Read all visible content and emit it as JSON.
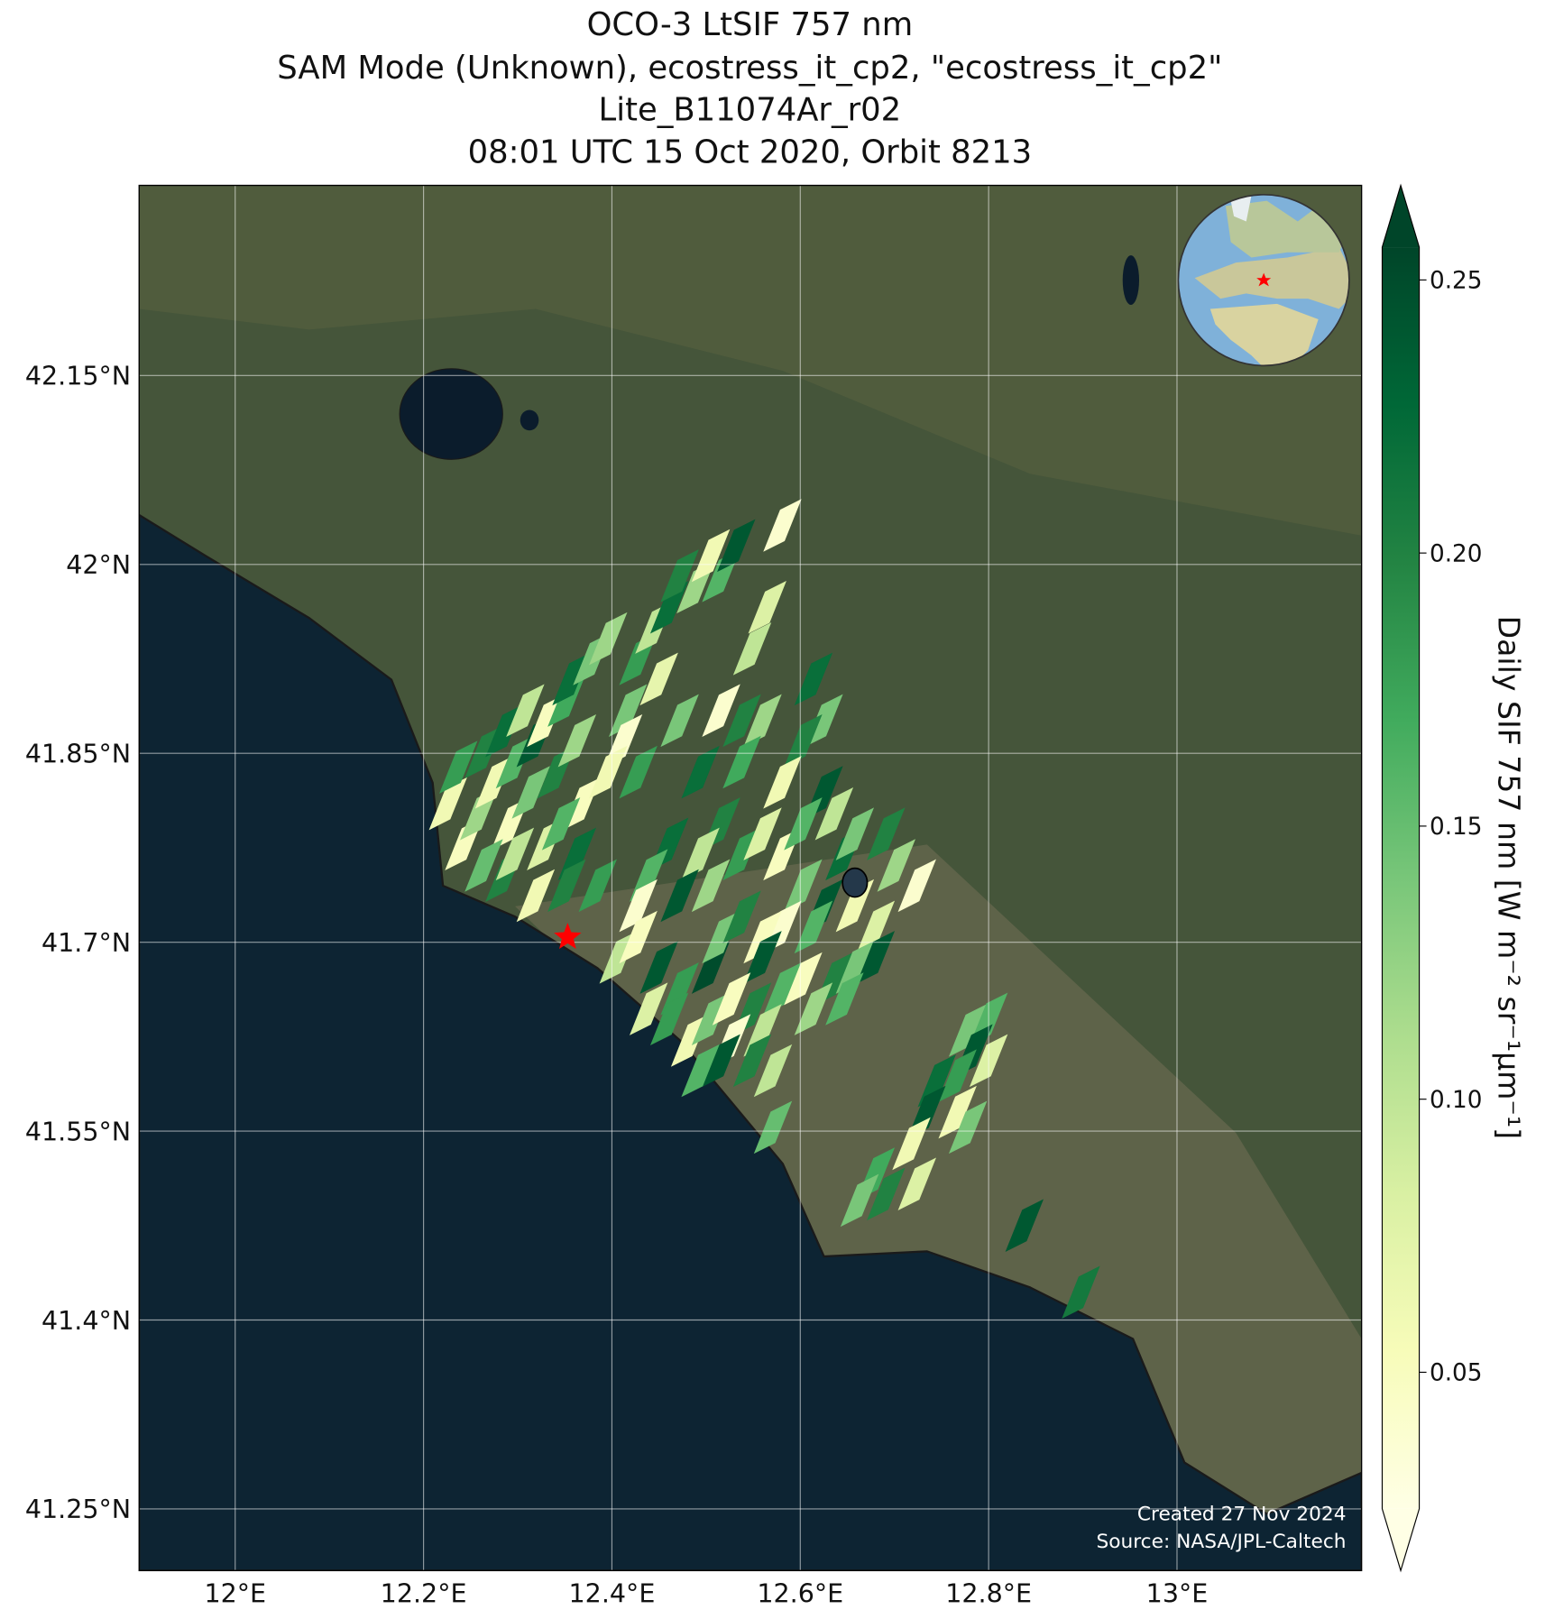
{
  "title": [
    "OCO-3 LtSIF 757 nm",
    "SAM Mode (Unknown), ecostress_it_cp2, \"ecostress_it_cp2\"",
    "Lite_B11074Ar_r02",
    "08:01 UTC 15 Oct 2020, Orbit 8213"
  ],
  "map": {
    "lon_range": [
      11.898,
      13.196
    ],
    "lat_range": [
      41.201,
      42.301
    ],
    "lon_ticks": [
      {
        "value": 12,
        "label": "12°E"
      },
      {
        "value": 12.2,
        "label": "12.2°E"
      },
      {
        "value": 12.4,
        "label": "12.4°E"
      },
      {
        "value": 12.6,
        "label": "12.6°E"
      },
      {
        "value": 12.8,
        "label": "12.8°E"
      },
      {
        "value": 13,
        "label": "13°E"
      }
    ],
    "lat_ticks": [
      {
        "value": 42.15,
        "label": "42.15°N"
      },
      {
        "value": 42,
        "label": "42°N"
      },
      {
        "value": 41.85,
        "label": "41.85°N"
      },
      {
        "value": 41.7,
        "label": "41.7°N"
      },
      {
        "value": 41.55,
        "label": "41.55°N"
      },
      {
        "value": 41.4,
        "label": "41.4°N"
      },
      {
        "value": 41.25,
        "label": "41.25°N"
      }
    ],
    "grid": true
  },
  "target": {
    "lon": 12.353,
    "lat": 41.704,
    "color": "#ff0000"
  },
  "soundings": {
    "lon": [
      12.226,
      12.243,
      12.237,
      12.264,
      12.259,
      12.275,
      12.286,
      12.297,
      12.292,
      12.308,
      12.319,
      12.314,
      12.33,
      12.341,
      12.352,
      12.357,
      12.363,
      12.368,
      12.379,
      12.396,
      12.264,
      12.286,
      12.33,
      12.346,
      12.363,
      12.319,
      12.385,
      12.352,
      12.297,
      12.428,
      12.445,
      12.461,
      12.472,
      12.489,
      12.505,
      12.516,
      12.532,
      12.45,
      12.417,
      12.412,
      12.581,
      12.565,
      12.549,
      12.538,
      12.516,
      12.494,
      12.472,
      12.428,
      12.396,
      12.614,
      12.625,
      12.603,
      12.56,
      12.538,
      12.581,
      12.625,
      12.516,
      12.494,
      12.461,
      12.439,
      12.428,
      12.472,
      12.505,
      12.538,
      12.56,
      12.581,
      12.603,
      12.636,
      12.647,
      12.603,
      12.625,
      12.658,
      12.691,
      12.702,
      12.724,
      12.658,
      12.68,
      12.581,
      12.614,
      12.407,
      12.428,
      12.45,
      12.472,
      12.505,
      12.516,
      12.538,
      12.56,
      12.56,
      12.581,
      12.603,
      12.636,
      12.658,
      12.68,
      12.647,
      12.614,
      12.439,
      12.461,
      12.483,
      12.505,
      12.527,
      12.549,
      12.527,
      12.56,
      12.516,
      12.549,
      12.571,
      12.494,
      12.571,
      12.778,
      12.8,
      12.784,
      12.8,
      12.745,
      12.767,
      12.734,
      12.767,
      12.778,
      12.718,
      12.68,
      12.663,
      12.691,
      12.724,
      12.838,
      12.898
    ],
    "lat": [
      41.81,
      41.778,
      41.839,
      41.851,
      41.802,
      41.827,
      41.868,
      41.843,
      41.794,
      41.884,
      41.86,
      41.819,
      41.876,
      41.835,
      41.892,
      41.909,
      41.86,
      41.81,
      41.925,
      41.941,
      41.761,
      41.753,
      41.778,
      41.794,
      41.77,
      41.737,
      41.745,
      41.745,
      41.77,
      41.925,
      41.95,
      41.966,
      41.991,
      41.982,
      42.007,
      41.991,
      42.015,
      41.909,
      41.884,
      41.86,
      42.031,
      41.966,
      41.933,
      41.876,
      41.884,
      41.835,
      41.876,
      41.835,
      41.835,
      41.909,
      41.876,
      41.86,
      41.876,
      41.843,
      41.827,
      41.819,
      41.794,
      41.77,
      41.778,
      41.753,
      41.729,
      41.737,
      41.745,
      41.77,
      41.786,
      41.77,
      41.794,
      41.802,
      41.77,
      41.745,
      41.729,
      41.786,
      41.786,
      41.761,
      41.745,
      41.729,
      41.712,
      41.712,
      41.712,
      41.688,
      41.704,
      41.68,
      41.663,
      41.68,
      41.704,
      41.72,
      41.704,
      41.688,
      41.663,
      41.671,
      41.671,
      41.68,
      41.688,
      41.655,
      41.647,
      41.647,
      41.639,
      41.622,
      41.639,
      41.655,
      41.647,
      41.622,
      41.63,
      41.606,
      41.606,
      41.598,
      41.598,
      41.553,
      41.63,
      41.639,
      41.614,
      41.606,
      41.59,
      41.594,
      41.565,
      41.565,
      41.553,
      41.54,
      41.516,
      41.495,
      41.5,
      41.508,
      41.475,
      41.422
    ],
    "sif": [
      0.06,
      0.05,
      0.18,
      0.2,
      0.12,
      0.06,
      0.22,
      0.16,
      0.05,
      0.1,
      0.24,
      0.14,
      0.05,
      0.2,
      0.17,
      0.22,
      0.12,
      0.05,
      0.14,
      0.12,
      0.15,
      0.2,
      0.08,
      0.16,
      0.22,
      0.06,
      0.18,
      0.2,
      0.1,
      0.18,
      0.1,
      0.22,
      0.2,
      0.12,
      0.06,
      0.16,
      0.24,
      0.07,
      0.14,
      0.04,
      0.04,
      0.08,
      0.1,
      0.2,
      0.04,
      0.22,
      0.14,
      0.18,
      0.06,
      0.22,
      0.14,
      0.2,
      0.12,
      0.17,
      0.06,
      0.24,
      0.2,
      0.1,
      0.22,
      0.16,
      0.04,
      0.24,
      0.12,
      0.18,
      0.08,
      0.05,
      0.16,
      0.1,
      0.22,
      0.14,
      0.24,
      0.14,
      0.2,
      0.12,
      0.04,
      0.06,
      0.08,
      0.04,
      0.16,
      0.1,
      0.05,
      0.24,
      0.18,
      0.25,
      0.14,
      0.2,
      0.05,
      0.24,
      0.16,
      0.05,
      0.2,
      0.14,
      0.24,
      0.16,
      0.12,
      0.08,
      0.18,
      0.06,
      0.14,
      0.05,
      0.2,
      0.04,
      0.1,
      0.24,
      0.2,
      0.1,
      0.16,
      0.15,
      0.14,
      0.16,
      0.24,
      0.08,
      0.22,
      0.18,
      0.24,
      0.06,
      0.14,
      0.06,
      0.17,
      0.14,
      0.2,
      0.08,
      0.24,
      0.21
    ]
  },
  "colorbar": {
    "label": "Daily SIF 757 nm [W m⁻² sr⁻¹µm⁻¹]",
    "range": [
      0.025,
      0.256
    ],
    "ticks": [
      0.05,
      {
        "value": 0.1,
        "label": "0.10"
      },
      0.15,
      {
        "value": 0.2,
        "label": "0.20"
      },
      0.25
    ],
    "colors": [
      "#ffffe5",
      "#f7fcb9",
      "#d9f0a3",
      "#addd8e",
      "#78c679",
      "#41ab5d",
      "#238443",
      "#006837",
      "#004529"
    ],
    "extend": "both"
  },
  "footer": [
    "Created 27 Nov 2024",
    "Source: NASA/JPL-Caltech"
  ]
}
